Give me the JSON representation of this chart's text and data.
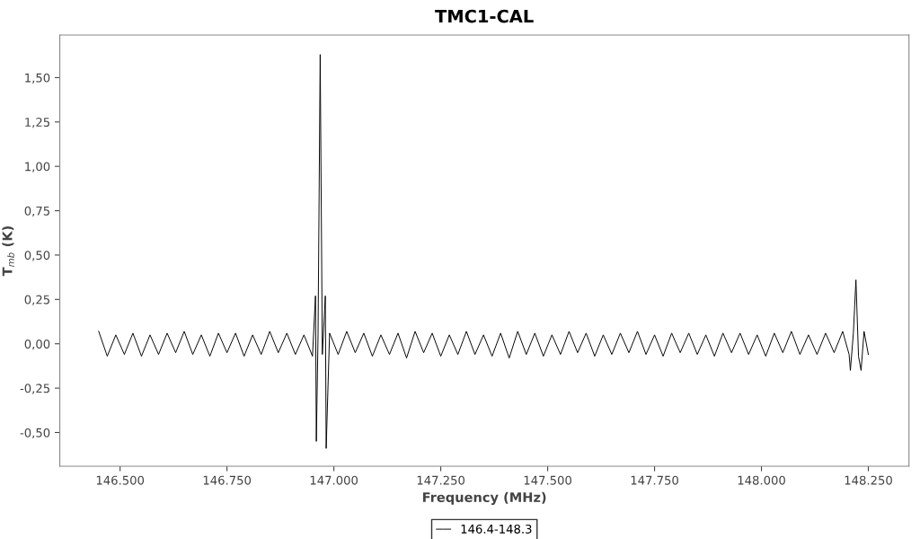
{
  "chart_data": {
    "type": "line",
    "title": "TMC1-CAL",
    "xlabel": "Frequency (MHz)",
    "ylabel": "T$_{mb}$ (K)",
    "x": [
      146450,
      146470,
      146490,
      146510,
      146530,
      146550,
      146570,
      146590,
      146610,
      146630,
      146650,
      146670,
      146690,
      146710,
      146730,
      146750,
      146770,
      146790,
      146810,
      146830,
      146850,
      146870,
      146890,
      146910,
      146930,
      146950,
      146957,
      146959,
      146963,
      146968,
      146973,
      146980,
      146982,
      146990,
      147010,
      147030,
      147050,
      147070,
      147090,
      147110,
      147130,
      147150,
      147170,
      147190,
      147210,
      147230,
      147250,
      147270,
      147290,
      147310,
      147330,
      147350,
      147370,
      147390,
      147410,
      147430,
      147450,
      147470,
      147490,
      147510,
      147530,
      147550,
      147570,
      147590,
      147610,
      147630,
      147650,
      147670,
      147690,
      147710,
      147730,
      147750,
      147770,
      147790,
      147810,
      147830,
      147850,
      147870,
      147890,
      147910,
      147930,
      147950,
      147970,
      147990,
      148010,
      148030,
      148050,
      148070,
      148090,
      148110,
      148130,
      148150,
      148170,
      148190,
      148205,
      148208,
      148215,
      148221,
      148227,
      148233,
      148240,
      148250
    ],
    "series": [
      {
        "name": "146.4-148.3",
        "color": "#000000",
        "values": [
          0.07,
          -0.07,
          0.05,
          -0.06,
          0.06,
          -0.07,
          0.05,
          -0.06,
          0.06,
          -0.05,
          0.07,
          -0.06,
          0.05,
          -0.07,
          0.06,
          -0.05,
          0.06,
          -0.07,
          0.05,
          -0.06,
          0.07,
          -0.05,
          0.06,
          -0.06,
          0.05,
          -0.07,
          0.27,
          -0.55,
          0.05,
          1.63,
          -0.06,
          0.27,
          -0.59,
          0.06,
          -0.06,
          0.07,
          -0.05,
          0.06,
          -0.07,
          0.05,
          -0.06,
          0.06,
          -0.08,
          0.07,
          -0.05,
          0.06,
          -0.07,
          0.05,
          -0.06,
          0.07,
          -0.06,
          0.05,
          -0.07,
          0.06,
          -0.08,
          0.07,
          -0.06,
          0.06,
          -0.07,
          0.05,
          -0.06,
          0.07,
          -0.05,
          0.06,
          -0.07,
          0.05,
          -0.06,
          0.06,
          -0.05,
          0.07,
          -0.06,
          0.05,
          -0.07,
          0.06,
          -0.05,
          0.06,
          -0.06,
          0.05,
          -0.07,
          0.06,
          -0.05,
          0.06,
          -0.06,
          0.05,
          -0.07,
          0.06,
          -0.05,
          0.07,
          -0.06,
          0.05,
          -0.06,
          0.06,
          -0.05,
          0.07,
          -0.06,
          -0.15,
          0.06,
          0.36,
          -0.07,
          -0.15,
          0.07,
          -0.06
        ]
      }
    ],
    "xlim": [
      146359,
      148345
    ],
    "ylim": [
      -0.69,
      1.74
    ],
    "xticks": [
      {
        "value": 146500,
        "label": "146.500"
      },
      {
        "value": 146750,
        "label": "146.750"
      },
      {
        "value": 147000,
        "label": "147.000"
      },
      {
        "value": 147250,
        "label": "147.250"
      },
      {
        "value": 147500,
        "label": "147.500"
      },
      {
        "value": 147750,
        "label": "147.750"
      },
      {
        "value": 148000,
        "label": "148.000"
      },
      {
        "value": 148250,
        "label": "148.250"
      }
    ],
    "yticks": [
      {
        "value": -0.5,
        "label": "-0,50"
      },
      {
        "value": -0.25,
        "label": "-0,25"
      },
      {
        "value": 0,
        "label": "0,00"
      },
      {
        "value": 0.25,
        "label": "0,25"
      },
      {
        "value": 0.5,
        "label": "0,50"
      },
      {
        "value": 0.75,
        "label": "0,75"
      },
      {
        "value": 1.0,
        "label": "1,00"
      },
      {
        "value": 1.25,
        "label": "1,25"
      },
      {
        "value": 1.5,
        "label": "1,50"
      }
    ],
    "grid": false,
    "legend": "bottom",
    "marker": "none",
    "line_style": "solid"
  }
}
